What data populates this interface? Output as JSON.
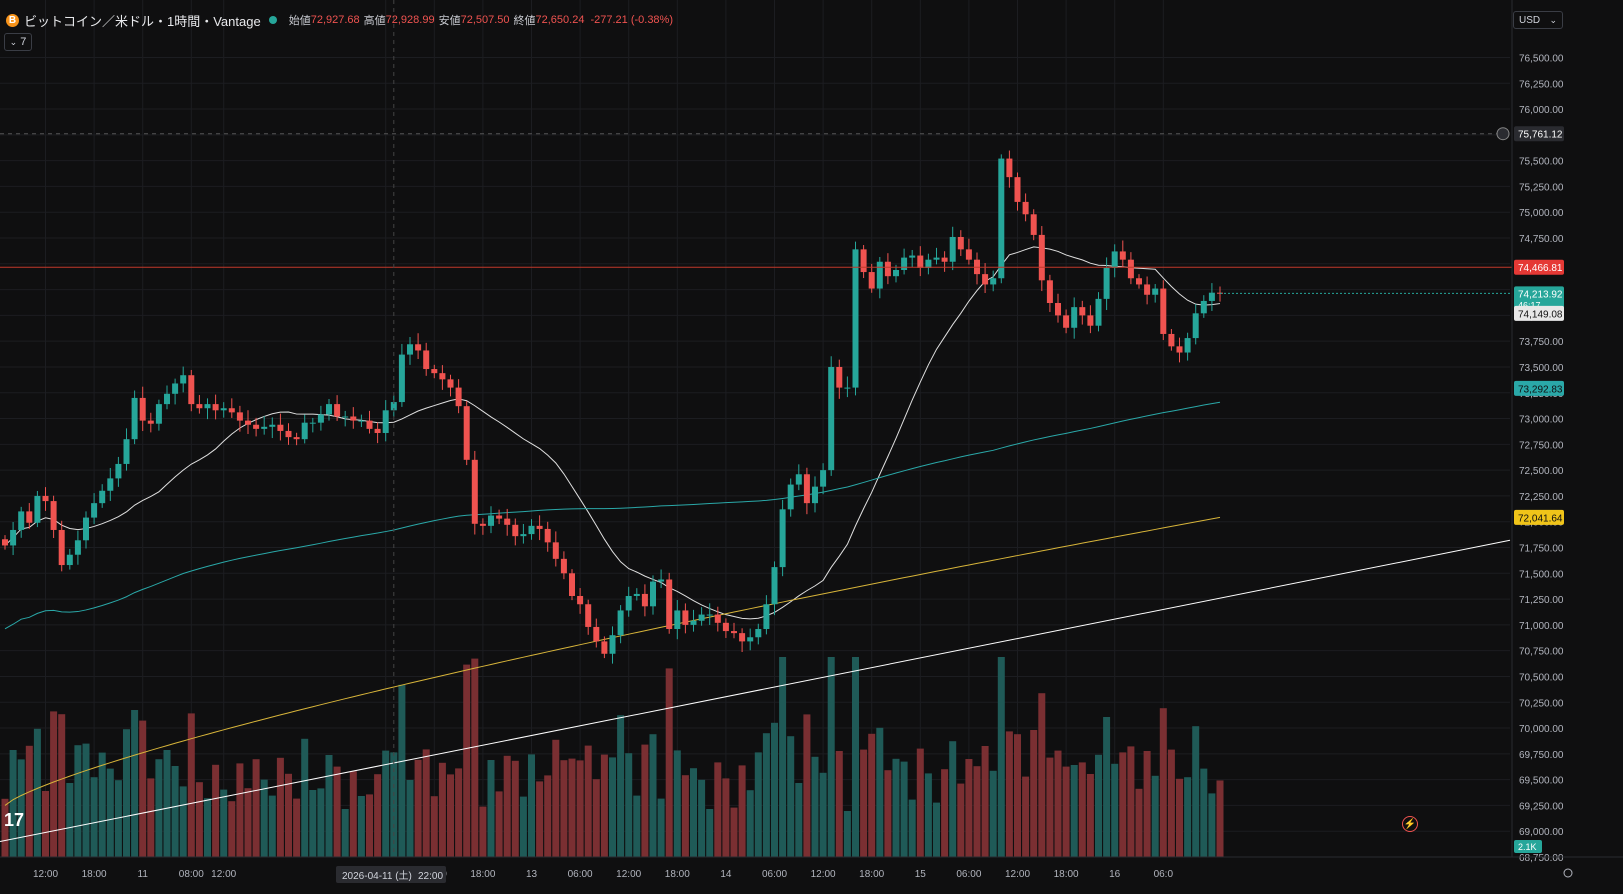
{
  "header": {
    "title": "ビットコイン／米ドル・1時間・Vantage",
    "open_label": "始値",
    "open": "72,927.68",
    "high_label": "高値",
    "high": "72,928.99",
    "low_label": "安値",
    "low": "72,507.50",
    "close_label": "終値",
    "close": "72,650.24",
    "change": "-277.21 (-0.38%)",
    "indicator_count": "7",
    "currency": "USD",
    "coin_glyph": "B"
  },
  "price_tags": {
    "crosshair": "75,761.12",
    "red_line": "74,466.81",
    "current": "74,213.92",
    "countdown": "46:17",
    "ma_fast": "74,149.08",
    "ma_mid": "73,292.83",
    "ma_slow": "72,041.64",
    "volume": "2.1K"
  },
  "time_tag": {
    "date": "2026-04-11 (土)",
    "time": "22:00"
  },
  "colors": {
    "up": "#26a69a",
    "down": "#ef5350",
    "vol_up": "#1f5a57",
    "vol_down": "#7a2f32",
    "ma_fast": "#e0e0e0",
    "ma_mid": "#2aa8a8",
    "ma_slow": "#d8b53a",
    "ma_long": "#ffffff"
  },
  "chart_data": {
    "type": "candlestick",
    "timeframe": "1時間",
    "ylim": [
      68750,
      76650
    ],
    "yticks": [
      68750,
      69000,
      69250,
      69500,
      69750,
      70000,
      70250,
      70500,
      70750,
      71000,
      71250,
      71500,
      71750,
      72000,
      72250,
      72500,
      72750,
      73000,
      73250,
      73500,
      73750,
      74000,
      74250,
      74500,
      74750,
      75000,
      75250,
      75500,
      75750,
      76000,
      76250,
      76500
    ],
    "ytick_labels": [
      "68,750.00",
      "69,000.00",
      "69,250.00",
      "69,500.00",
      "69,750.00",
      "70,000.00",
      "70,250.00",
      "70,500.00",
      "70,750.00",
      "71,000.00",
      "71,250.00",
      "71,500.00",
      "71,750.00",
      "72,000.00",
      "72,250.00",
      "72,500.00",
      "72,750.00",
      "73,000.00",
      "73,250.00",
      "73,500.00",
      "73,750.00",
      "74,000.00",
      "74,250.00",
      "74,500.00",
      "74,750.00",
      "75,000.00",
      "75,250.00",
      "75,500.00",
      "75,750.00",
      "76,000.00",
      "76,250.00",
      "76,500.00"
    ],
    "xticks": [
      {
        "i": 5,
        "label": "12:00"
      },
      {
        "i": 11,
        "label": "18:00"
      },
      {
        "i": 17,
        "label": "11"
      },
      {
        "i": 23,
        "label": "08:00"
      },
      {
        "i": 27,
        "label": "12:00"
      },
      {
        "i": 47,
        "label": "06:00"
      },
      {
        "i": 53,
        "label": "12:00"
      },
      {
        "i": 59,
        "label": "18:00"
      },
      {
        "i": 65,
        "label": "13"
      },
      {
        "i": 71,
        "label": "06:00"
      },
      {
        "i": 77,
        "label": "12:00"
      },
      {
        "i": 83,
        "label": "18:00"
      },
      {
        "i": 89,
        "label": "14"
      },
      {
        "i": 95,
        "label": "06:00"
      },
      {
        "i": 101,
        "label": "12:00"
      },
      {
        "i": 107,
        "label": "18:00"
      },
      {
        "i": 113,
        "label": "15"
      },
      {
        "i": 119,
        "label": "06:00"
      },
      {
        "i": 125,
        "label": "12:00"
      },
      {
        "i": 131,
        "label": "18:00"
      },
      {
        "i": 137,
        "label": "16"
      },
      {
        "i": 143,
        "label": "06:0"
      }
    ],
    "close": [
      71770,
      71920,
      72100,
      71990,
      72250,
      72200,
      71920,
      71580,
      71680,
      71820,
      72040,
      72180,
      72300,
      72420,
      72560,
      72800,
      73200,
      72980,
      72950,
      73140,
      73240,
      73340,
      73420,
      73140,
      73100,
      73140,
      73080,
      73100,
      73060,
      72980,
      72940,
      72900,
      72920,
      72940,
      72880,
      72820,
      72800,
      72960,
      72960,
      73040,
      73140,
      73020,
      73020,
      72980,
      72980,
      72900,
      72860,
      73080,
      73160,
      73620,
      73720,
      73660,
      73480,
      73440,
      73380,
      73300,
      73120,
      72600,
      71980,
      71960,
      72060,
      72030,
      71970,
      71860,
      71880,
      71960,
      71930,
      71800,
      71640,
      71500,
      71280,
      71200,
      70980,
      70840,
      70720,
      70900,
      71140,
      71280,
      71300,
      71180,
      71420,
      71440,
      70960,
      71140,
      71000,
      71040,
      71100,
      71100,
      71020,
      70940,
      70920,
      70840,
      70880,
      70960,
      71200,
      71560,
      72120,
      72360,
      72460,
      72180,
      72340,
      72500,
      73500,
      73300,
      73300,
      74640,
      74420,
      74260,
      74520,
      74380,
      74440,
      74560,
      74580,
      74460,
      74540,
      74560,
      74520,
      74760,
      74640,
      74540,
      74400,
      74300,
      74360,
      75520,
      75340,
      75100,
      74980,
      74780,
      74340,
      74120,
      74000,
      73880,
      74080,
      74000,
      73900,
      74160,
      74460,
      74620,
      74540,
      74360,
      74300,
      74200,
      74260,
      73820,
      73700,
      73640,
      73780,
      74020,
      74140,
      74220,
      74213
    ],
    "ma_fast": {
      "label": "74,149.08",
      "start": 72300,
      "end": 74149
    },
    "ma_mid": {
      "label": "73,292.83",
      "start": 70300,
      "end": 73293
    },
    "ma_slow": {
      "label": "72,041.64",
      "start": 69250,
      "end": 72042
    },
    "volume_last": "2.1K"
  }
}
